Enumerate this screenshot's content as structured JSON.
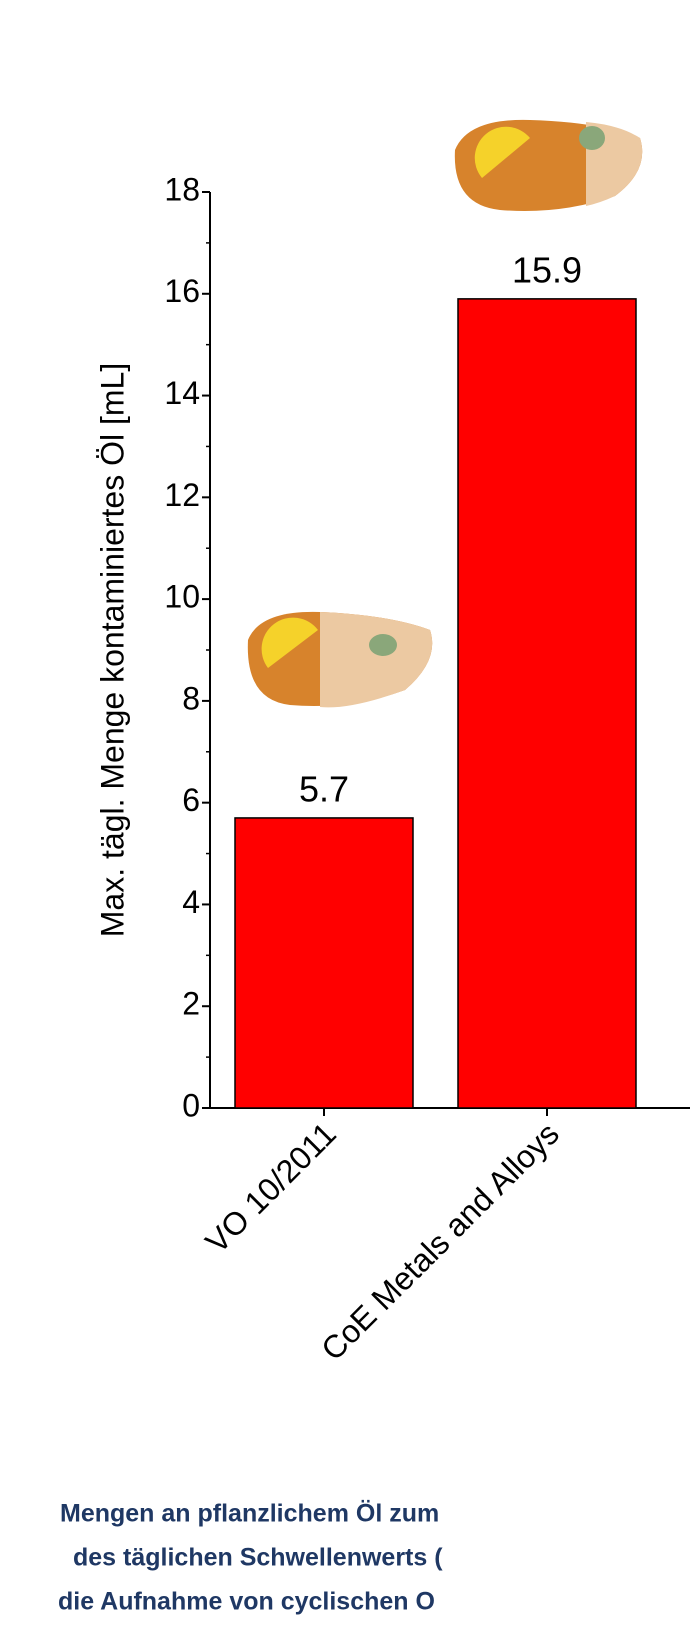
{
  "chart_data": {
    "type": "bar",
    "y_label": "Max. tägl. Menge kontaminiertes Öl [mL]",
    "categories": [
      "VO 10/2011",
      "CoE Metals and Alloys"
    ],
    "values": [
      5.7,
      15.9
    ],
    "color": "#ff0000",
    "ylim": [
      0,
      18
    ],
    "yticks": [
      0,
      2,
      4,
      6,
      8,
      10,
      12,
      14,
      16,
      18
    ],
    "caption": [
      "Mengen an pflanzlichem Öl zum",
      "des täglichen Schwellenwerts (",
      "die Aufnahme von cyclischen O"
    ]
  }
}
